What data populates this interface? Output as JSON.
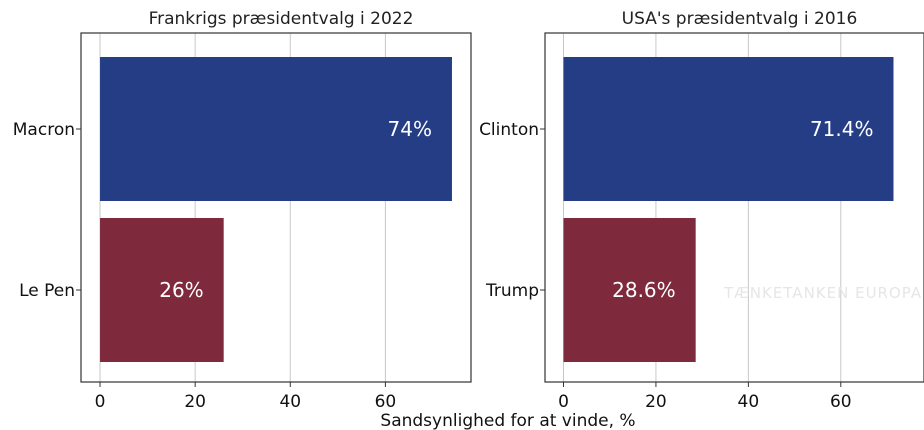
{
  "chart_data": [
    {
      "type": "bar",
      "orientation": "horizontal",
      "title": "Frankrigs præsidentvalg i 2022",
      "categories": [
        "Macron",
        "Le Pen"
      ],
      "values": [
        74,
        26
      ],
      "data_labels": [
        "74%",
        "26%"
      ],
      "colors": [
        "#253d85",
        "#7f2a3c"
      ],
      "xlim": [
        -4,
        78
      ],
      "xticks": [
        0,
        20,
        40,
        60
      ],
      "xtick_labels": [
        "0",
        "20",
        "40",
        "60"
      ],
      "grid": true
    },
    {
      "type": "bar",
      "orientation": "horizontal",
      "title": "USA's præsidentvalg i 2016",
      "categories": [
        "Clinton",
        "Trump"
      ],
      "values": [
        71.4,
        28.6
      ],
      "data_labels": [
        "71.4%",
        "28.6%"
      ],
      "colors": [
        "#253d85",
        "#7f2a3c"
      ],
      "xlim": [
        -4,
        78
      ],
      "xticks": [
        0,
        20,
        40,
        60
      ],
      "xtick_labels": [
        "0",
        "20",
        "40",
        "60"
      ],
      "grid": true
    }
  ],
  "xlabel": "Sandsynlighed for at vinde, %",
  "watermark": "TÆNKETANKEN EUROPA"
}
